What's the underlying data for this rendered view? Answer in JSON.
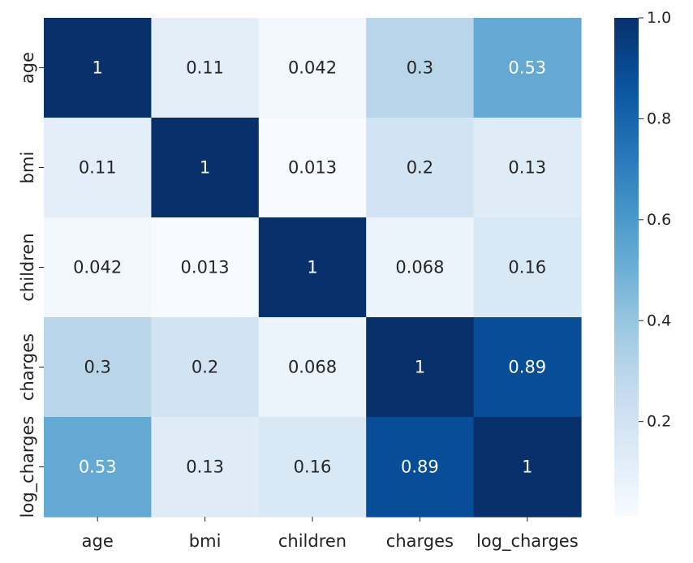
{
  "chart_data": {
    "type": "heatmap",
    "title": "",
    "xlabel": "",
    "ylabel": "",
    "x_categories": [
      "age",
      "bmi",
      "children",
      "charges",
      "log_charges"
    ],
    "y_categories": [
      "age",
      "bmi",
      "children",
      "charges",
      "log_charges"
    ],
    "values": [
      [
        1,
        0.11,
        0.042,
        0.3,
        0.53
      ],
      [
        0.11,
        1,
        0.013,
        0.2,
        0.13
      ],
      [
        0.042,
        0.013,
        1,
        0.068,
        0.16
      ],
      [
        0.3,
        0.2,
        0.068,
        1,
        0.89
      ],
      [
        0.53,
        0.13,
        0.16,
        0.89,
        1
      ]
    ],
    "value_labels": [
      [
        "1",
        "0.11",
        "0.042",
        "0.3",
        "0.53"
      ],
      [
        "0.11",
        "1",
        "0.013",
        "0.2",
        "0.13"
      ],
      [
        "0.042",
        "0.013",
        "1",
        "0.068",
        "0.16"
      ],
      [
        "0.3",
        "0.2",
        "0.068",
        "1",
        "0.89"
      ],
      [
        "0.53",
        "0.13",
        "0.16",
        "0.89",
        "1"
      ]
    ],
    "colormap": "Blues",
    "color_range": [
      0.013,
      1.0
    ],
    "colorbar": {
      "ticks": [
        0.2,
        0.4,
        0.6,
        0.8,
        1.0
      ],
      "tick_labels": [
        "0.2",
        "0.4",
        "0.6",
        "0.8",
        "1.0"
      ],
      "position": "right"
    },
    "annotations": true,
    "grid": false
  }
}
